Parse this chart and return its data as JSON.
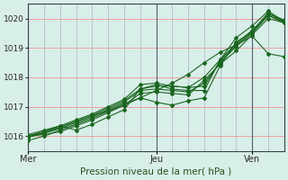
{
  "title": "",
  "xlabel": "Pression niveau de la mer( hPa )",
  "ylim": [
    1015.5,
    1020.5
  ],
  "xlim": [
    0,
    96
  ],
  "yticks": [
    1016,
    1017,
    1018,
    1019,
    1020
  ],
  "xtick_positions": [
    0,
    48,
    84
  ],
  "xtick_labels": [
    "Mer",
    "Jeu",
    "Ven"
  ],
  "bg_color": "#d8eee8",
  "grid_color_h": "#f0a0a0",
  "grid_color_v": "#a0a8b8",
  "vline_color": "#506070",
  "line_color": "#1a6620",
  "marker_color": "#1a6620",
  "series": [
    [
      0,
      1016.0,
      6,
      1016.05,
      12,
      1016.15,
      18,
      1016.35,
      24,
      1016.55,
      30,
      1016.8,
      36,
      1017.05,
      42,
      1017.3,
      48,
      1017.55,
      54,
      1017.8,
      60,
      1018.1,
      66,
      1018.5,
      72,
      1018.85,
      78,
      1019.1,
      84,
      1019.4,
      90,
      1018.8,
      96,
      1018.7
    ],
    [
      0,
      1015.85,
      6,
      1016.0,
      12,
      1016.2,
      18,
      1016.4,
      24,
      1016.6,
      30,
      1016.85,
      36,
      1017.1,
      42,
      1017.3,
      48,
      1017.15,
      54,
      1017.05,
      60,
      1017.2,
      66,
      1017.3,
      72,
      1018.4,
      78,
      1019.2,
      84,
      1019.55,
      90,
      1020.1,
      96,
      1019.85
    ],
    [
      0,
      1015.95,
      6,
      1016.1,
      12,
      1016.3,
      18,
      1016.5,
      24,
      1016.7,
      30,
      1016.95,
      36,
      1017.2,
      42,
      1017.6,
      48,
      1017.75,
      54,
      1017.6,
      60,
      1017.55,
      66,
      1017.55,
      72,
      1018.6,
      78,
      1019.35,
      84,
      1019.75,
      90,
      1020.25,
      96,
      1019.9
    ],
    [
      0,
      1016.0,
      6,
      1016.15,
      12,
      1016.35,
      18,
      1016.2,
      24,
      1016.4,
      30,
      1016.65,
      36,
      1016.9,
      42,
      1017.6,
      48,
      1017.7,
      54,
      1017.7,
      60,
      1017.65,
      66,
      1017.7,
      72,
      1018.55,
      78,
      1019.1,
      84,
      1019.55,
      90,
      1020.2,
      96,
      1019.85
    ],
    [
      0,
      1016.0,
      6,
      1016.1,
      12,
      1016.25,
      18,
      1016.45,
      24,
      1016.65,
      30,
      1016.9,
      36,
      1017.15,
      42,
      1017.55,
      48,
      1017.6,
      54,
      1017.55,
      60,
      1017.5,
      66,
      1017.8,
      72,
      1018.5,
      78,
      1019.05,
      84,
      1019.5,
      90,
      1020.1,
      96,
      1019.9
    ],
    [
      0,
      1016.0,
      6,
      1016.15,
      12,
      1016.3,
      18,
      1016.5,
      24,
      1016.7,
      30,
      1016.85,
      36,
      1017.05,
      42,
      1017.45,
      48,
      1017.5,
      54,
      1017.45,
      60,
      1017.4,
      66,
      1017.9,
      72,
      1018.45,
      78,
      1018.9,
      84,
      1019.45,
      90,
      1020.0,
      96,
      1019.85
    ],
    [
      0,
      1016.05,
      6,
      1016.2,
      12,
      1016.35,
      18,
      1016.55,
      24,
      1016.75,
      30,
      1017.0,
      36,
      1017.25,
      42,
      1017.75,
      48,
      1017.8,
      54,
      1017.7,
      60,
      1017.65,
      66,
      1018.0,
      72,
      1018.6,
      78,
      1019.15,
      84,
      1019.6,
      90,
      1020.15,
      96,
      1019.95
    ]
  ]
}
